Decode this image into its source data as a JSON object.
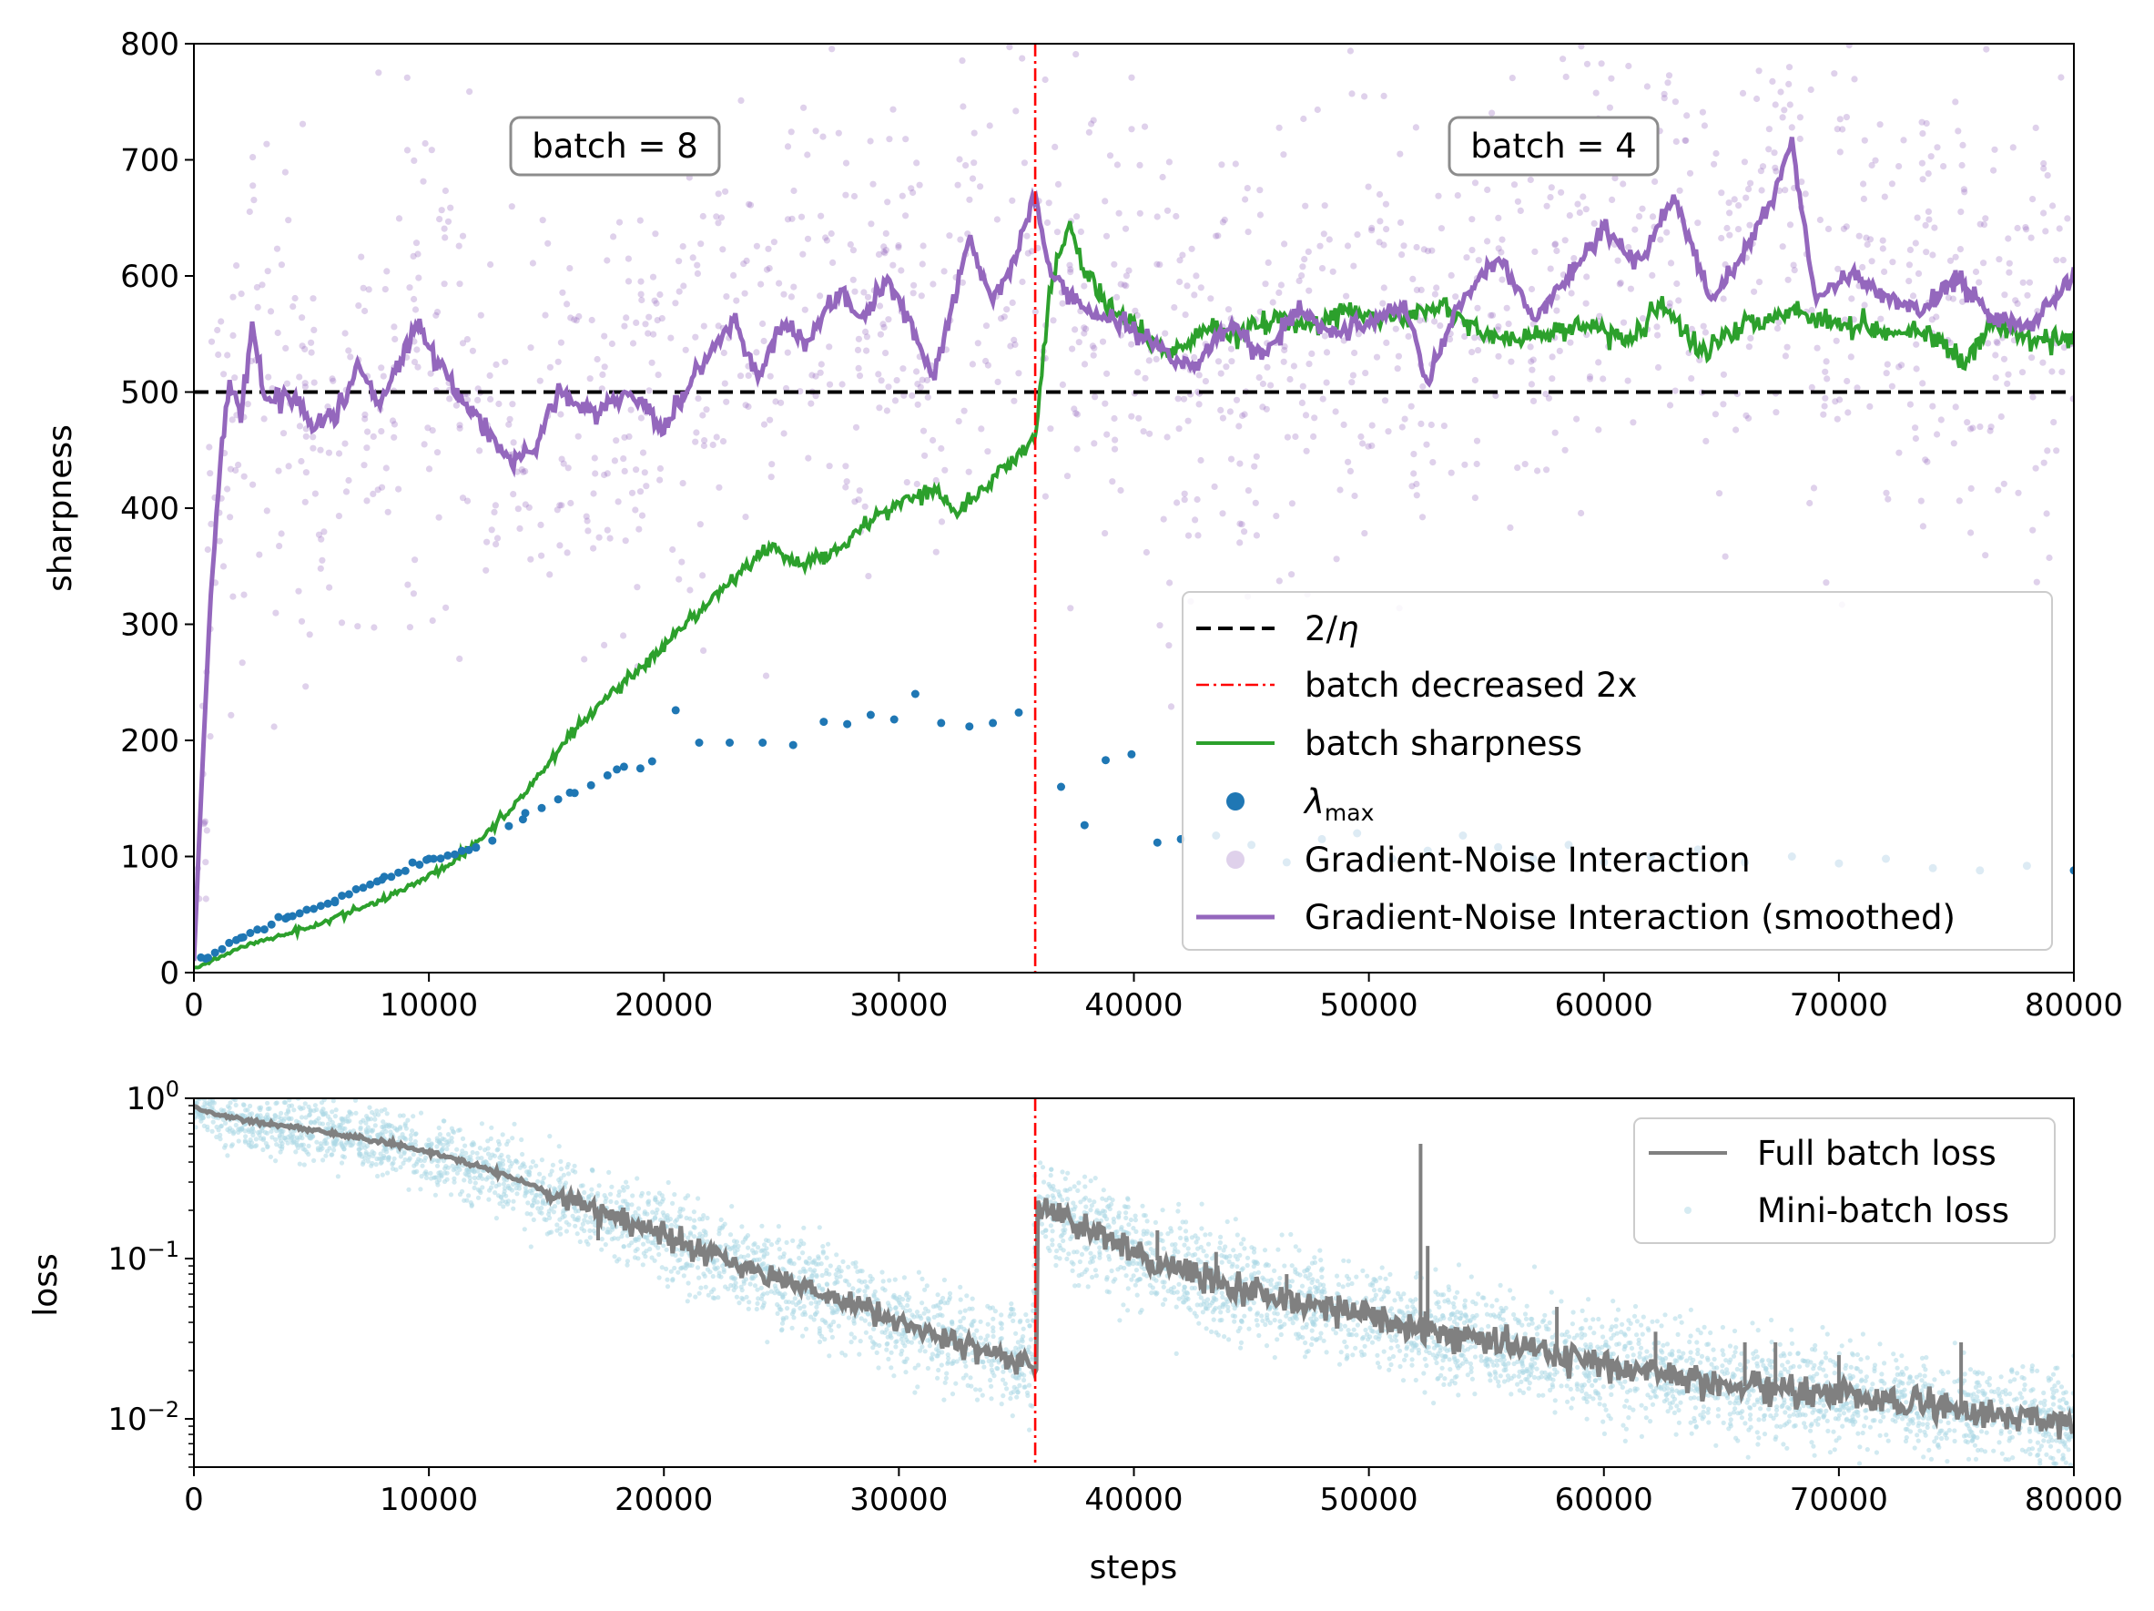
{
  "chart_data": [
    {
      "type": "line",
      "panel": "sharpness",
      "ylabel": "sharpness",
      "xlabel": "",
      "xlim": [
        0,
        80000
      ],
      "ylim": [
        0,
        800
      ],
      "xticks": [
        0,
        10000,
        20000,
        30000,
        40000,
        50000,
        60000,
        70000,
        80000
      ],
      "xtick_labels": [
        "0",
        "10000",
        "20000",
        "30000",
        "40000",
        "50000",
        "60000",
        "70000",
        "80000"
      ],
      "yticks": [
        0,
        100,
        200,
        300,
        400,
        500,
        600,
        700,
        800
      ],
      "ytick_labels": [
        "0",
        "100",
        "200",
        "300",
        "400",
        "500",
        "600",
        "700",
        "800"
      ],
      "threshold": {
        "label": "2/η",
        "label_main": "2/",
        "label_greek": "η",
        "y": 500,
        "color": "#000000"
      },
      "batch_change": {
        "label": "batch decreased 2x",
        "x": 35800,
        "color": "#ff0000"
      },
      "annotations": [
        {
          "text": "batch = 8",
          "x": 17800,
          "y": 712
        },
        {
          "text": "batch = 4",
          "x": 57700,
          "y": 712
        }
      ],
      "series": [
        {
          "name": "batch sharpness",
          "color": "#2ca02c",
          "x": [
            0,
            2000,
            5000,
            8000,
            11000,
            13000,
            14500,
            16000,
            18000,
            20000,
            22000,
            23500,
            24500,
            25500,
            27000,
            28500,
            30000,
            31500,
            32500,
            34000,
            35000,
            35800,
            36100,
            36400,
            36800,
            37300,
            38000,
            39000,
            40000,
            41500,
            43000,
            44500,
            46000,
            47500,
            49000,
            51000,
            53000,
            55000,
            57000,
            59000,
            61000,
            62500,
            64000,
            66000,
            68000,
            70000,
            72000,
            74000,
            75300,
            76500,
            78000,
            80000
          ],
          "y": [
            3,
            22,
            40,
            62,
            95,
            130,
            165,
            205,
            245,
            280,
            320,
            350,
            368,
            352,
            360,
            385,
            405,
            418,
            395,
            425,
            445,
            460,
            520,
            580,
            620,
            640,
            600,
            570,
            560,
            530,
            555,
            550,
            565,
            555,
            570,
            560,
            575,
            550,
            545,
            560,
            545,
            575,
            535,
            560,
            570,
            560,
            555,
            550,
            520,
            560,
            545,
            545
          ]
        },
        {
          "name": "λmax",
          "type": "scatter",
          "color": "#1f77b4",
          "x": [
            500,
            2000,
            4000,
            6000,
            8000,
            10000,
            12000,
            14000,
            16000,
            18000,
            19500,
            20500,
            21500,
            22800,
            24200,
            25500,
            26800,
            27800,
            28800,
            29800,
            30700,
            31800,
            33000,
            34000,
            35100,
            36900,
            37900,
            38800,
            39900,
            41000,
            42000,
            43500,
            45000,
            46500,
            48000,
            49500,
            51000,
            52500,
            54000,
            55500,
            57000,
            58500,
            60000,
            62000,
            64000,
            66000,
            68000,
            70000,
            72000,
            74000,
            76000,
            78000,
            80000
          ],
          "y": [
            12,
            30,
            48,
            62,
            80,
            98,
            108,
            132,
            155,
            175,
            182,
            226,
            198,
            198,
            198,
            196,
            216,
            214,
            222,
            218,
            240,
            215,
            212,
            215,
            224,
            160,
            127,
            183,
            188,
            112,
            115,
            118,
            110,
            95,
            115,
            120,
            98,
            105,
            118,
            108,
            98,
            110,
            95,
            100,
            106,
            95,
            100,
            94,
            98,
            90,
            88,
            92,
            88
          ]
        },
        {
          "name": "Gradient-Noise Interaction",
          "type": "scatter",
          "color": "#9467bd",
          "alpha": 0.3
        },
        {
          "name": "Gradient-Noise Interaction (smoothed)",
          "color": "#9467bd",
          "x": [
            0,
            300,
            700,
            1100,
            1500,
            2000,
            2500,
            3000,
            4000,
            5000,
            6000,
            7000,
            8000,
            9500,
            10500,
            12000,
            13500,
            14500,
            15500,
            17000,
            18500,
            20000,
            21500,
            23000,
            24000,
            25000,
            26000,
            27500,
            28500,
            29500,
            30500,
            31500,
            33000,
            34000,
            35000,
            35800,
            36300,
            37000,
            38000,
            39500,
            41000,
            42500,
            44000,
            45500,
            47000,
            48500,
            50000,
            51500,
            52500,
            54000,
            55500,
            57000,
            58500,
            60000,
            61500,
            63000,
            64500,
            66000,
            67000,
            68000,
            69000,
            70500,
            72000,
            73500,
            75000,
            76500,
            78000,
            80000
          ],
          "y": [
            10,
            150,
            320,
            430,
            510,
            480,
            560,
            490,
            500,
            470,
            480,
            520,
            490,
            560,
            520,
            480,
            440,
            450,
            500,
            480,
            500,
            470,
            520,
            560,
            510,
            560,
            540,
            590,
            560,
            600,
            560,
            510,
            630,
            580,
            620,
            670,
            610,
            590,
            570,
            560,
            540,
            520,
            560,
            530,
            570,
            550,
            560,
            575,
            510,
            580,
            620,
            560,
            600,
            640,
            610,
            670,
            580,
            620,
            660,
            715,
            580,
            600,
            580,
            570,
            600,
            565,
            555,
            600
          ]
        }
      ],
      "legend": {
        "position": "lower-right",
        "entries": [
          "2/η",
          "batch decreased 2x",
          "batch sharpness",
          "λmax",
          "Gradient-Noise Interaction",
          "Gradient-Noise Interaction (smoothed)"
        ]
      }
    },
    {
      "type": "line",
      "panel": "loss",
      "ylabel": "loss",
      "xlabel": "steps",
      "yscale": "log",
      "xlim": [
        0,
        80000
      ],
      "ylim": [
        0.005,
        1
      ],
      "xticks": [
        0,
        10000,
        20000,
        30000,
        40000,
        50000,
        60000,
        70000,
        80000
      ],
      "xtick_labels": [
        "0",
        "10000",
        "20000",
        "30000",
        "40000",
        "50000",
        "60000",
        "70000",
        "80000"
      ],
      "yticks": [
        0.01,
        0.1,
        1
      ],
      "ytick_labels": [
        {
          "base": "10",
          "exp": "−2"
        },
        {
          "base": "10",
          "exp": "−1"
        },
        {
          "base": "10",
          "exp": "0"
        }
      ],
      "batch_change": {
        "x": 35800,
        "color": "#ff0000"
      },
      "series": [
        {
          "name": "Full batch loss",
          "color": "#808080",
          "x": [
            0,
            1000,
            3000,
            6000,
            9000,
            12000,
            15000,
            18000,
            21000,
            24000,
            27000,
            30000,
            33000,
            35700,
            35850,
            36500,
            38000,
            40000,
            42000,
            44000,
            46000,
            48000,
            50000,
            52000,
            54000,
            56000,
            58000,
            60000,
            62000,
            64000,
            66000,
            68000,
            70000,
            72000,
            74000,
            76000,
            78000,
            80000
          ],
          "y": [
            0.88,
            0.78,
            0.7,
            0.6,
            0.5,
            0.38,
            0.26,
            0.18,
            0.12,
            0.082,
            0.058,
            0.04,
            0.029,
            0.021,
            0.22,
            0.2,
            0.15,
            0.11,
            0.085,
            0.07,
            0.058,
            0.05,
            0.043,
            0.037,
            0.032,
            0.028,
            0.025,
            0.022,
            0.02,
            0.018,
            0.016,
            0.015,
            0.014,
            0.013,
            0.012,
            0.011,
            0.0105,
            0.0095
          ]
        },
        {
          "name": "Mini-batch loss",
          "type": "scatter",
          "color": "#add8e6"
        }
      ],
      "spikes": [
        {
          "x": 17200,
          "y": 0.13
        },
        {
          "x": 20500,
          "y": 0.12
        },
        {
          "x": 25000,
          "y": 0.07
        },
        {
          "x": 28200,
          "y": 0.05
        },
        {
          "x": 41000,
          "y": 0.15
        },
        {
          "x": 43500,
          "y": 0.11
        },
        {
          "x": 46500,
          "y": 0.08
        },
        {
          "x": 52200,
          "y": 0.52
        },
        {
          "x": 52500,
          "y": 0.12
        },
        {
          "x": 58000,
          "y": 0.05
        },
        {
          "x": 62200,
          "y": 0.035
        },
        {
          "x": 66000,
          "y": 0.03
        },
        {
          "x": 67300,
          "y": 0.03
        },
        {
          "x": 70000,
          "y": 0.025
        },
        {
          "x": 75200,
          "y": 0.03
        }
      ],
      "legend": {
        "position": "upper-right",
        "entries": [
          "Full batch loss",
          "Mini-batch loss"
        ]
      }
    }
  ]
}
